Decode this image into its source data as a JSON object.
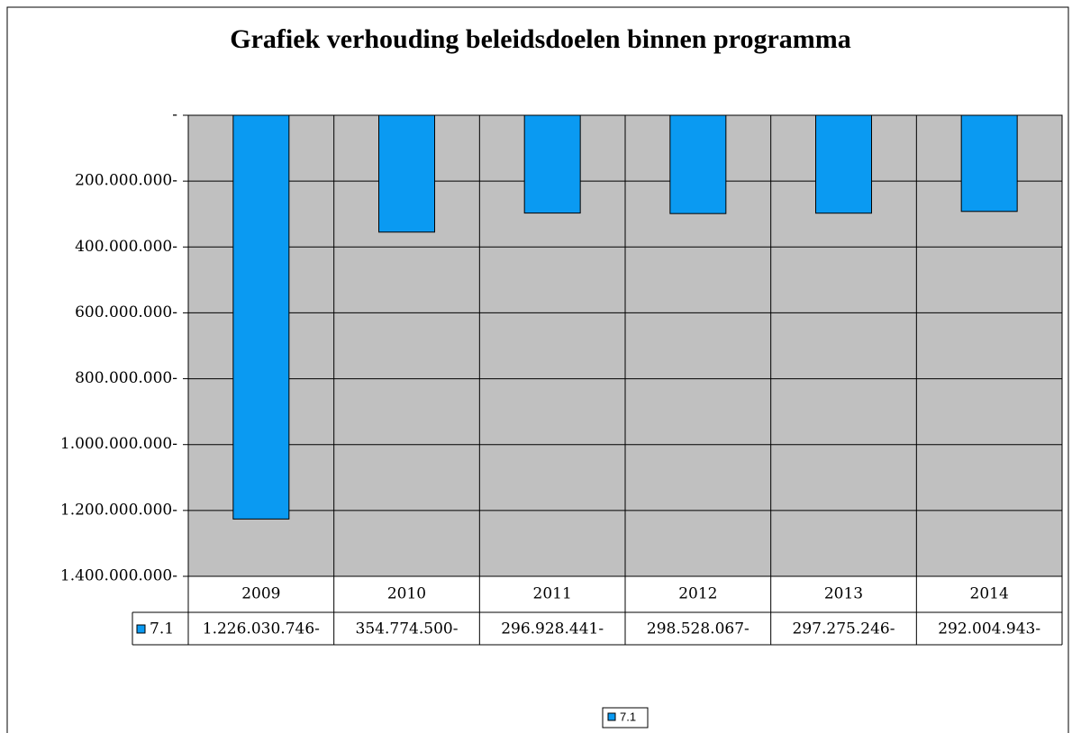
{
  "chart_data": {
    "type": "bar",
    "title": "Grafiek verhouding beleidsdoelen binnen programma",
    "categories": [
      "2009",
      "2010",
      "2011",
      "2012",
      "2013",
      "2014"
    ],
    "series": [
      {
        "name": "7.1",
        "color": "#0a9af2",
        "values": [
          -1226030746,
          -354774500,
          -296928441,
          -298528067,
          -297275246,
          -292004943
        ],
        "value_labels": [
          "1.226.030.746-",
          "354.774.500-",
          "296.928.441-",
          "298.528.067-",
          "297.275.246-",
          "292.004.943-"
        ]
      }
    ],
    "ylim": [
      -1400000000,
      0
    ],
    "yticks": [
      {
        "value": 0,
        "label": "-"
      },
      {
        "value": -200000000,
        "label": "200.000.000-"
      },
      {
        "value": -400000000,
        "label": "400.000.000-"
      },
      {
        "value": -600000000,
        "label": "600.000.000-"
      },
      {
        "value": -800000000,
        "label": "800.000.000-"
      },
      {
        "value": -1000000000,
        "label": "1.000.000.000-"
      },
      {
        "value": -1200000000,
        "label": "1.200.000.000-"
      },
      {
        "value": -1400000000,
        "label": "1.400.000.000-"
      }
    ],
    "grid": true
  }
}
